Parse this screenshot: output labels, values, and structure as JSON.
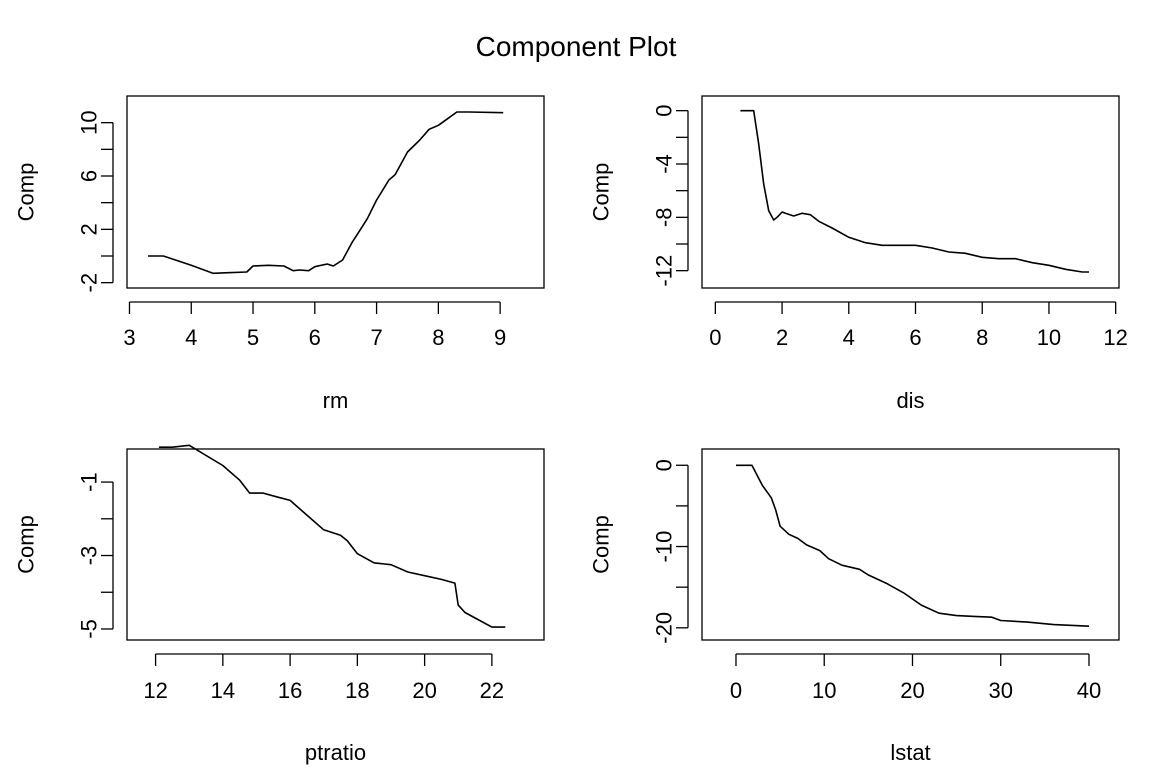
{
  "title": "Component Plot",
  "chart_data": [
    {
      "type": "line",
      "xlabel": "rm",
      "ylabel": "Comp",
      "xlim": [
        2.96,
        9.71
      ],
      "ylim": [
        -2.4,
        12.0
      ],
      "xticks": [
        3,
        4,
        5,
        6,
        7,
        8,
        9
      ],
      "yticks": [
        -2,
        2,
        6,
        10
      ],
      "yticks_minor": [
        -2,
        0,
        2,
        4,
        6,
        8,
        10
      ],
      "x": [
        3.3,
        3.55,
        4.0,
        4.35,
        4.6,
        4.9,
        5.0,
        5.25,
        5.5,
        5.65,
        5.75,
        5.9,
        6.0,
        6.2,
        6.3,
        6.45,
        6.6,
        6.7,
        6.85,
        7.0,
        7.2,
        7.3,
        7.5,
        7.7,
        7.85,
        8.0,
        8.15,
        8.3,
        8.5,
        9.05
      ],
      "y": [
        0.0,
        0.0,
        -0.7,
        -1.3,
        -1.25,
        -1.2,
        -0.75,
        -0.7,
        -0.75,
        -1.1,
        -1.05,
        -1.1,
        -0.8,
        -0.6,
        -0.75,
        -0.3,
        1.0,
        1.7,
        2.8,
        4.2,
        5.7,
        6.1,
        7.8,
        8.7,
        9.5,
        9.8,
        10.3,
        10.8,
        10.8,
        10.75
      ]
    },
    {
      "type": "line",
      "xlabel": "dis",
      "ylabel": "Comp",
      "xlim": [
        -0.4,
        12.1
      ],
      "ylim": [
        -13.3,
        1.1
      ],
      "xticks": [
        0,
        2,
        4,
        6,
        8,
        10,
        12
      ],
      "yticks": [
        0,
        -4,
        -8,
        -12
      ],
      "yticks_minor": [
        -12,
        -10,
        -8,
        -6,
        -4,
        -2,
        0
      ],
      "x": [
        0.75,
        1.15,
        1.3,
        1.45,
        1.6,
        1.75,
        1.85,
        2.0,
        2.1,
        2.35,
        2.6,
        2.85,
        3.1,
        3.5,
        4.0,
        4.5,
        5.0,
        5.6,
        6.0,
        6.5,
        7.0,
        7.5,
        8.0,
        8.5,
        9.0,
        9.5,
        10.0,
        10.5,
        11.0,
        11.2
      ],
      "y": [
        0.0,
        0.0,
        -2.5,
        -5.5,
        -7.5,
        -8.2,
        -8.0,
        -7.6,
        -7.7,
        -7.9,
        -7.7,
        -7.8,
        -8.3,
        -8.8,
        -9.5,
        -9.9,
        -10.1,
        -10.1,
        -10.1,
        -10.3,
        -10.6,
        -10.7,
        -11.0,
        -11.1,
        -11.1,
        -11.4,
        -11.6,
        -11.9,
        -12.1,
        -12.1
      ]
    },
    {
      "type": "line",
      "xlabel": "ptratio",
      "ylabel": "Comp",
      "xlim": [
        11.15,
        23.55
      ],
      "ylim": [
        -5.3,
        -0.1
      ],
      "xticks": [
        12,
        14,
        16,
        18,
        20,
        22
      ],
      "yticks": [
        -1,
        -3,
        -5
      ],
      "yticks_minor": [
        -5,
        -4,
        -3,
        -2,
        -1
      ],
      "x": [
        12.1,
        12.5,
        13.0,
        14.0,
        14.5,
        14.8,
        15.2,
        15.6,
        16.0,
        16.5,
        17.0,
        17.5,
        17.7,
        18.0,
        18.5,
        19.0,
        19.5,
        20.0,
        20.5,
        20.9,
        21.0,
        21.2,
        21.5,
        22.0,
        22.4
      ],
      "y": [
        -0.05,
        -0.05,
        0.0,
        -0.55,
        -0.95,
        -1.3,
        -1.3,
        -1.4,
        -1.5,
        -1.9,
        -2.3,
        -2.45,
        -2.6,
        -2.95,
        -3.2,
        -3.25,
        -3.45,
        -3.55,
        -3.65,
        -3.75,
        -4.35,
        -4.55,
        -4.7,
        -4.95,
        -4.95
      ]
    },
    {
      "type": "line",
      "xlabel": "lstat",
      "ylabel": "Comp",
      "xlim": [
        -3.85,
        43.4
      ],
      "ylim": [
        -21.5,
        2.0
      ],
      "xticks": [
        0,
        10,
        20,
        30,
        40
      ],
      "yticks": [
        0,
        -10,
        -20
      ],
      "yticks_minor": [
        -20,
        -15,
        -10,
        -5,
        0
      ],
      "x": [
        0,
        1.8,
        3.0,
        4.0,
        4.5,
        5.0,
        6.0,
        7.0,
        8.0,
        9.5,
        10.5,
        12.0,
        14.0,
        15.0,
        17.0,
        19.0,
        21.0,
        23.0,
        25.0,
        27.0,
        29.0,
        30.0,
        33.0,
        36.0,
        40.0
      ],
      "y": [
        0,
        0,
        -2.5,
        -4.0,
        -5.5,
        -7.5,
        -8.5,
        -9.0,
        -9.8,
        -10.5,
        -11.5,
        -12.3,
        -12.8,
        -13.5,
        -14.5,
        -15.7,
        -17.2,
        -18.2,
        -18.5,
        -18.6,
        -18.7,
        -19.1,
        -19.3,
        -19.6,
        -19.8
      ]
    }
  ]
}
